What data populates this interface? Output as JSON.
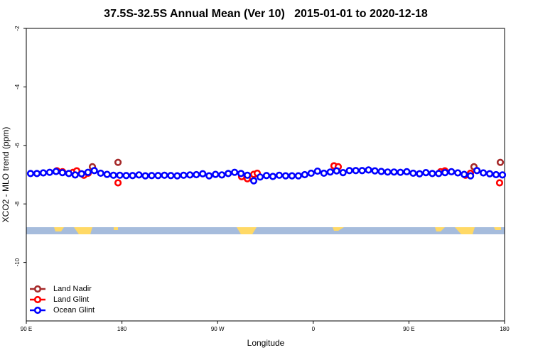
{
  "chart_data": {
    "type": "scatter",
    "title": "37.5S-32.5S Annual Mean (Ver 10)   2015-01-01 to 2020-12-18",
    "x_label": "Longitude",
    "y_label": "XCO2 - MLO trend (ppm)",
    "xlim": [
      90,
      540
    ],
    "xticks": [
      {
        "value": 90,
        "label": "90 E"
      },
      {
        "value": 180,
        "label": "180"
      },
      {
        "value": 270,
        "label": "90 W"
      },
      {
        "value": 360,
        "label": "0"
      },
      {
        "value": 450,
        "label": "90 E"
      },
      {
        "value": 540,
        "label": "180"
      }
    ],
    "ylim": [
      -12,
      -2
    ],
    "yticks": [
      -10,
      -8,
      -6,
      -4,
      -2
    ],
    "grid": false,
    "legend": "bottom-left",
    "series": [
      {
        "name": "Land Nadir",
        "color": "#a52a2a",
        "x": [
          118.8,
          152.2,
          176.3,
          304,
          379.5,
          511.2,
          536
        ],
        "values": [
          -6.87,
          -6.73,
          -6.58,
          -6.99,
          -6.7,
          -6.73,
          -6.58
        ]
      },
      {
        "name": "Land Glint",
        "color": "#ff0000",
        "x": [
          118.8,
          124.1,
          134,
          137.5,
          144.2,
          148.2,
          176.3,
          292.6,
          298,
          304,
          307.3,
          379.5,
          383.5,
          479.8,
          483.8,
          503.2,
          507.9,
          535.3
        ],
        "values": [
          -6.87,
          -6.9,
          -6.92,
          -6.87,
          -7.02,
          -6.95,
          -7.28,
          -7.07,
          -7.14,
          -6.99,
          -6.95,
          -6.7,
          -6.73,
          -6.9,
          -6.87,
          -7.02,
          -6.95,
          -7.28
        ]
      },
      {
        "name": "Ocean Glint",
        "color": "#0000ff",
        "x": [
          94,
          100,
          106,
          112,
          118,
          124,
          130,
          136,
          142,
          148,
          154,
          160,
          166,
          172,
          178,
          184,
          190,
          196,
          202,
          208,
          214,
          220,
          226,
          232,
          238,
          244,
          250,
          256,
          262,
          268,
          274,
          280,
          286,
          292,
          298,
          304,
          310,
          316,
          322,
          328,
          334,
          340,
          346,
          352,
          358,
          364,
          370,
          376,
          382,
          388,
          394,
          400,
          406,
          412,
          418,
          424,
          430,
          436,
          442,
          448,
          454,
          460,
          466,
          472,
          478,
          484,
          490,
          496,
          502,
          508,
          514,
          520,
          526,
          532,
          538
        ],
        "values": [
          -6.96,
          -6.96,
          -6.94,
          -6.92,
          -6.89,
          -6.93,
          -6.96,
          -7.01,
          -6.97,
          -6.92,
          -6.86,
          -6.95,
          -6.99,
          -7.02,
          -7.02,
          -7.03,
          -7.03,
          -7.01,
          -7.04,
          -7.03,
          -7.03,
          -7.02,
          -7.03,
          -7.04,
          -7.02,
          -7.01,
          -7.0,
          -6.97,
          -7.04,
          -6.99,
          -7.01,
          -6.96,
          -6.92,
          -6.96,
          -7.02,
          -7.21,
          -7.08,
          -7.03,
          -7.06,
          -7.02,
          -7.04,
          -7.04,
          -7.04,
          -7.0,
          -6.95,
          -6.88,
          -6.95,
          -6.91,
          -6.87,
          -6.93,
          -6.86,
          -6.86,
          -6.86,
          -6.84,
          -6.87,
          -6.89,
          -6.91,
          -6.91,
          -6.92,
          -6.9,
          -6.95,
          -6.97,
          -6.93,
          -6.96,
          -6.96,
          -6.93,
          -6.9,
          -6.94,
          -6.99,
          -7.04,
          -6.86,
          -6.94,
          -6.97,
          -7.0,
          -7.01
        ]
      }
    ]
  }
}
